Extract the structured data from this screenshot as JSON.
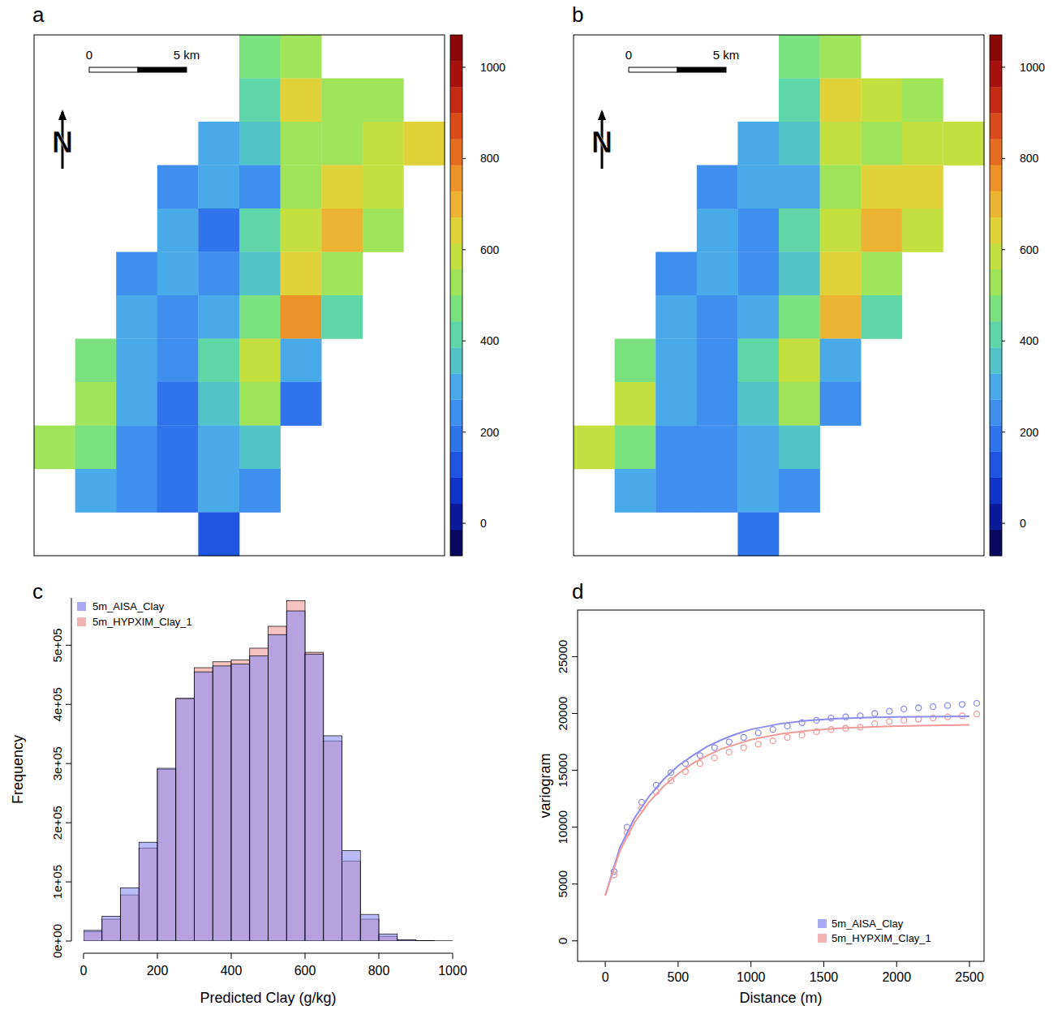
{
  "chart_data": [
    {
      "type": "heatmap",
      "panel_label": "a",
      "annotations": [
        "0",
        "5 km",
        "N"
      ],
      "cells": [
        [
          null,
          null,
          null,
          null,
          null,
          450,
          500,
          null,
          null,
          null
        ],
        [
          null,
          null,
          null,
          null,
          null,
          400,
          650,
          550,
          550,
          null
        ],
        [
          null,
          null,
          null,
          null,
          300,
          350,
          550,
          500,
          600,
          620
        ],
        [
          null,
          null,
          null,
          250,
          300,
          250,
          500,
          650,
          600,
          null
        ],
        [
          null,
          null,
          null,
          300,
          200,
          400,
          600,
          700,
          550,
          null
        ],
        [
          null,
          null,
          250,
          300,
          250,
          350,
          650,
          500,
          null,
          null
        ],
        [
          null,
          null,
          300,
          250,
          300,
          450,
          750,
          400,
          null,
          null
        ],
        [
          null,
          450,
          300,
          250,
          400,
          600,
          300,
          null,
          null,
          null
        ],
        [
          null,
          550,
          300,
          200,
          350,
          500,
          200,
          null,
          null,
          null
        ],
        [
          550,
          450,
          250,
          200,
          300,
          350,
          null,
          null,
          null,
          null
        ],
        [
          null,
          300,
          250,
          200,
          300,
          250,
          null,
          null,
          null,
          null
        ],
        [
          null,
          null,
          null,
          null,
          150,
          null,
          null,
          null,
          null,
          null
        ]
      ],
      "colorbar": {
        "lim": [
          -71,
          1071
        ],
        "ticks": [
          0,
          200,
          400,
          600,
          800,
          1000
        ],
        "colors": [
          "#08085e",
          "#0a1a9a",
          "#1034c8",
          "#1f55e0",
          "#2f74ea",
          "#3f8fee",
          "#4aa9e8",
          "#52c4c8",
          "#5ed6a8",
          "#7be07e",
          "#a0e45a",
          "#c4e040",
          "#e2d23a",
          "#ecb432",
          "#ec9228",
          "#e66c20",
          "#da4a1a",
          "#c42a14",
          "#a8120e",
          "#8a0808"
        ]
      }
    },
    {
      "type": "heatmap",
      "panel_label": "b",
      "annotations": [
        "0",
        "5 km",
        "N"
      ],
      "cells": [
        [
          null,
          null,
          null,
          null,
          null,
          480,
          520,
          null,
          null,
          null
        ],
        [
          null,
          null,
          null,
          null,
          null,
          420,
          620,
          560,
          540,
          null
        ],
        [
          null,
          null,
          null,
          null,
          320,
          380,
          560,
          520,
          580,
          600
        ],
        [
          null,
          null,
          null,
          270,
          320,
          280,
          520,
          640,
          620,
          null
        ],
        [
          null,
          null,
          null,
          320,
          220,
          420,
          600,
          680,
          560,
          null
        ],
        [
          null,
          null,
          270,
          320,
          270,
          370,
          640,
          520,
          null,
          null
        ],
        [
          null,
          null,
          320,
          270,
          320,
          460,
          720,
          420,
          null,
          null
        ],
        [
          null,
          470,
          320,
          270,
          420,
          580,
          320,
          null,
          null,
          null
        ],
        [
          null,
          580,
          320,
          220,
          370,
          520,
          220,
          null,
          null,
          null
        ],
        [
          580,
          470,
          270,
          220,
          320,
          370,
          null,
          null,
          null,
          null
        ],
        [
          null,
          320,
          270,
          220,
          320,
          270,
          null,
          null,
          null,
          null
        ],
        [
          null,
          null,
          null,
          null,
          170,
          null,
          null,
          null,
          null,
          null
        ]
      ],
      "colorbar": {
        "lim": [
          -71,
          1071
        ],
        "ticks": [
          0,
          200,
          400,
          600,
          800,
          1000
        ],
        "colors": [
          "#08085e",
          "#0a1a9a",
          "#1034c8",
          "#1f55e0",
          "#2f74ea",
          "#3f8fee",
          "#4aa9e8",
          "#52c4c8",
          "#5ed6a8",
          "#7be07e",
          "#a0e45a",
          "#c4e040",
          "#e2d23a",
          "#ecb432",
          "#ec9228",
          "#e66c20",
          "#da4a1a",
          "#c42a14",
          "#a8120e",
          "#8a0808"
        ]
      }
    },
    {
      "type": "histogram",
      "panel_label": "c",
      "x_label": "Predicted Clay (g/kg)",
      "y_label": "Frequency",
      "bins": [
        0,
        50,
        100,
        150,
        200,
        250,
        300,
        350,
        400,
        450,
        500,
        550,
        600,
        650,
        700,
        750,
        800,
        850,
        900,
        950,
        1000
      ],
      "series": [
        {
          "name": "5m_AISA_Clay",
          "color": "#8c8cf0",
          "values": [
            18000,
            42000,
            90000,
            167000,
            292000,
            410000,
            455000,
            465000,
            468000,
            482000,
            518000,
            558000,
            485000,
            347000,
            153000,
            45000,
            12000,
            2000,
            500,
            100
          ]
        },
        {
          "name": "5m_HYPXIM_Clay_1",
          "color": "#f09a9a",
          "values": [
            16000,
            37000,
            78000,
            157000,
            290000,
            410000,
            462000,
            472000,
            475000,
            495000,
            532000,
            575000,
            488000,
            338000,
            135000,
            37000,
            8000,
            1500,
            300,
            50
          ]
        }
      ],
      "xlim": [
        0,
        1000
      ],
      "xticks": [
        0,
        200,
        400,
        600,
        800,
        1000
      ],
      "ylim": [
        0,
        580000
      ],
      "yticks": [
        {
          "value": 0,
          "label": "0e+00"
        },
        {
          "value": 100000,
          "label": "1e+05"
        },
        {
          "value": 200000,
          "label": "2e+05"
        },
        {
          "value": 300000,
          "label": "3e+05"
        },
        {
          "value": 400000,
          "label": "4e+05"
        },
        {
          "value": 500000,
          "label": "5e+05"
        }
      ],
      "legend": "top-left"
    },
    {
      "type": "scatter",
      "panel_label": "d",
      "x_label": "Distance (m)",
      "y_label": "variogram",
      "series": [
        {
          "name": "5m_AISA_Clay",
          "color": "#8c8cf0",
          "marker": "circle",
          "x": [
            60,
            150,
            250,
            350,
            450,
            550,
            650,
            750,
            850,
            950,
            1050,
            1150,
            1250,
            1350,
            1450,
            1550,
            1650,
            1750,
            1850,
            1950,
            2050,
            2150,
            2250,
            2350,
            2450,
            2550
          ],
          "values": [
            6100,
            10000,
            12200,
            13700,
            14800,
            15600,
            16300,
            17000,
            17500,
            17900,
            18300,
            18600,
            18900,
            19200,
            19400,
            19600,
            19700,
            19800,
            20000,
            20200,
            20400,
            20500,
            20600,
            20700,
            20800,
            20900
          ]
        },
        {
          "name": "5m_HYPXIM_Clay_1",
          "color": "#f09a9a",
          "marker": "circle",
          "x": [
            60,
            150,
            250,
            350,
            450,
            550,
            650,
            750,
            850,
            950,
            1050,
            1150,
            1250,
            1350,
            1450,
            1550,
            1650,
            1750,
            1850,
            1950,
            2050,
            2150,
            2250,
            2350,
            2450,
            2550
          ],
          "values": [
            5800,
            9500,
            11700,
            13100,
            14100,
            14900,
            15600,
            16100,
            16600,
            17000,
            17300,
            17600,
            17900,
            18100,
            18400,
            18600,
            18700,
            18800,
            19100,
            19300,
            19400,
            19500,
            19600,
            19700,
            19800,
            19950
          ]
        },
        {
          "type": "line",
          "color": "#8c8cf0",
          "line_style": "solid",
          "x": [
            0,
            100,
            200,
            300,
            400,
            500,
            600,
            700,
            800,
            900,
            1000,
            1200,
            1400,
            1600,
            1800,
            2000,
            2500
          ],
          "values": [
            4000,
            8200,
            10800,
            12700,
            14200,
            15400,
            16300,
            17100,
            17700,
            18200,
            18600,
            19100,
            19400,
            19550,
            19650,
            19700,
            19750
          ]
        },
        {
          "type": "line",
          "color": "#f09a9a",
          "line_style": "solid",
          "x": [
            0,
            100,
            200,
            300,
            400,
            500,
            600,
            700,
            800,
            900,
            1000,
            1200,
            1400,
            1600,
            1800,
            2000,
            2500
          ],
          "values": [
            4000,
            7900,
            10400,
            12200,
            13600,
            14700,
            15600,
            16300,
            16900,
            17300,
            17700,
            18200,
            18500,
            18700,
            18800,
            18900,
            19000
          ]
        }
      ],
      "xlim": [
        -190,
        2600
      ],
      "xticks": [
        0,
        500,
        1000,
        1500,
        2000,
        2500
      ],
      "ylim": [
        -1800,
        29100
      ],
      "yticks": [
        0,
        5000,
        10000,
        15000,
        20000,
        25000
      ],
      "legend": "bottom-right"
    }
  ]
}
